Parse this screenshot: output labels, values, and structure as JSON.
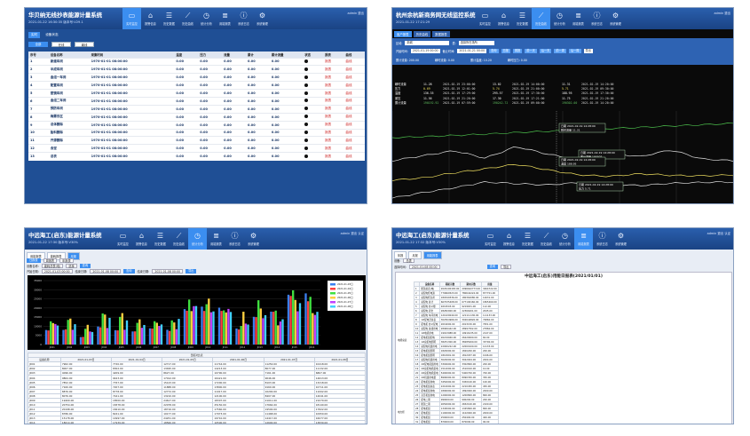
{
  "colors": {
    "header": "#1f4f95",
    "active_nav": "#3b8ef0",
    "chart_bg": "#0a0a0a"
  },
  "nav_items": [
    {
      "icon": "monitor-icon",
      "label": "实时监控"
    },
    {
      "icon": "building-icon",
      "label": "报警信息"
    },
    {
      "icon": "database-icon",
      "label": "历史数据"
    },
    {
      "icon": "line-chart-icon",
      "label": "历史曲线"
    },
    {
      "icon": "clock-icon",
      "label": "统计分析"
    },
    {
      "icon": "stack-icon",
      "label": "用能报表"
    },
    {
      "icon": "info-icon",
      "label": "系统日志"
    },
    {
      "icon": "gear-icon",
      "label": "系统管理"
    }
  ],
  "panel1": {
    "title": "华贝纳无线抄表能源计量系统",
    "subtitle": "2021-01-22 16:30:35    版本号:V29.1",
    "user": "admin 退出",
    "tabs": [
      "实时",
      "设备状态"
    ],
    "buttons": [
      "全部",
      "在线",
      "离线"
    ],
    "columns": [
      "序号",
      "设备名称",
      "采集时间",
      "温度",
      "压力",
      "流量",
      "累计",
      "累计流量",
      "状态",
      "报表",
      "曲线"
    ],
    "status_sym": "●",
    "report_label": "报表",
    "curve_label": "曲线",
    "rows": [
      {
        "no": "1",
        "name": "新建车间",
        "time": "1970-01-01 08:00:00",
        "v1": "0.00",
        "v2": "0.00",
        "v3": "0.00",
        "v4": "0.00",
        "v5": "0.00"
      },
      {
        "no": "2",
        "name": "半成车间",
        "time": "1970-01-01 08:00:00",
        "v1": "0.00",
        "v2": "0.00",
        "v3": "0.00",
        "v4": "0.00",
        "v5": "0.00"
      },
      {
        "no": "3",
        "name": "金组一车间",
        "time": "1970-01-01 08:00:00",
        "v1": "0.00",
        "v2": "0.00",
        "v3": "0.00",
        "v4": "0.00",
        "v5": "0.00"
      },
      {
        "no": "4",
        "name": "配置车间",
        "time": "1970-01-01 08:00:00",
        "v1": "0.00",
        "v2": "0.00",
        "v3": "0.00",
        "v4": "0.00",
        "v5": "0.00"
      },
      {
        "no": "5",
        "name": "壁镜车间",
        "time": "1970-01-01 08:00:00",
        "v1": "0.00",
        "v2": "0.00",
        "v3": "0.00",
        "v4": "0.00",
        "v5": "0.00"
      },
      {
        "no": "6",
        "name": "金组二车间",
        "time": "1970-01-01 08:00:00",
        "v1": "0.00",
        "v2": "0.00",
        "v3": "0.00",
        "v4": "0.00",
        "v5": "0.00"
      },
      {
        "no": "7",
        "name": "预防车间",
        "time": "1970-01-01 08:00:00",
        "v1": "0.00",
        "v2": "0.00",
        "v3": "0.00",
        "v4": "0.00",
        "v5": "0.00"
      },
      {
        "no": "8",
        "name": "梅霖东区",
        "time": "1970-01-01 08:00:00",
        "v1": "0.00",
        "v2": "0.00",
        "v3": "0.00",
        "v4": "0.00",
        "v5": "0.00"
      },
      {
        "no": "9",
        "name": "总体删除",
        "time": "1970-01-01 08:00:00",
        "v1": "0.00",
        "v2": "0.00",
        "v3": "0.00",
        "v4": "0.00",
        "v5": "0.00"
      },
      {
        "no": "10",
        "name": "胎料删除",
        "time": "1970-01-01 08:00:00",
        "v1": "0.00",
        "v2": "0.00",
        "v3": "0.00",
        "v4": "0.00",
        "v5": "0.00"
      },
      {
        "no": "11",
        "name": "开源删除",
        "time": "1970-01-01 08:00:00",
        "v1": "0.00",
        "v2": "0.00",
        "v3": "0.00",
        "v4": "0.00",
        "v5": "0.00"
      },
      {
        "no": "12",
        "name": "食堂",
        "time": "1970-01-01 08:00:00",
        "v1": "0.00",
        "v2": "0.00",
        "v3": "0.00",
        "v4": "0.00",
        "v5": "0.00"
      },
      {
        "no": "13",
        "name": "总表",
        "time": "1970-01-01 08:00:00",
        "v1": "0.00",
        "v2": "0.00",
        "v3": "0.00",
        "v4": "0.00",
        "v5": "0.00"
      }
    ]
  },
  "panel2": {
    "title": "杭州余杭新商务网无线监控系统",
    "subtitle": "2021-01-22 17:21:29",
    "user": "admin 退出",
    "tabs": [
      "客户报表",
      "历史曲线",
      "数据报表"
    ],
    "filter_row1": {
      "l1": "区域:",
      "v1": "新城",
      "l2": "表:",
      "v2": "选择所在场所"
    },
    "filter_row2": {
      "l1": "开始时间:",
      "v1": "2021-01-19 00:00",
      "l2": "截止时间:",
      "v2": "2021-01-21 00:00",
      "btns": [
        "查询",
        "日报",
        "周报",
        "前一天",
        "后一天",
        "前一周",
        "后一周"
      ],
      "export": "导出"
    },
    "stats": [
      "累计流量: 200.00",
      "瞬时流量: 0.00",
      "累计温度: 10.20",
      "瞬时压力: 0.00"
    ],
    "legend": [
      {
        "name": "瞬时流量",
        "color": "#ffffff",
        "v": [
          "11.28",
          "13.02",
          "11.31"
        ],
        "t": [
          "2021-02-19 23:00:00",
          "2021-02-19 14:00:00",
          "2021-02-19 14:20:00"
        ]
      },
      {
        "name": "压力",
        "color": "#f0e060",
        "v": [
          "0.69",
          "5.74",
          "5.71"
        ],
        "t": [
          "2021-02-19 12:01:00",
          "2021-02-19 21:00:00",
          "2021-02-19 09:30:00"
        ]
      },
      {
        "name": "温度",
        "color": "#ffffff",
        "v": [
          "136.35",
          "295.57",
          "188.95"
        ],
        "t": [
          "2021-02-19 17:29:00",
          "2021-02-19 17:30:00",
          "2021-02-19 17:30:00"
        ]
      },
      {
        "name": "差压",
        "color": "#ffffff",
        "v": [
          "11.56",
          "17.30",
          "11.75"
        ],
        "t": [
          "2021-02-19 21:20:00",
          "2021-02-19 17:21:00",
          "2021-02-19 21:20:00"
        ]
      },
      {
        "name": "累计流量",
        "color": "#60c060",
        "v": [
          "190192.92",
          "190242.72",
          "190302.00"
        ],
        "t": [
          "2021-02-19 07:59:00",
          "2021-02-19 09:00:00",
          "2021-02-19 14:20:00"
        ]
      }
    ],
    "tooltips": [
      {
        "l1": "日期 2021-02-19 14:28:00",
        "l2": "瞬时流量 11.31"
      },
      {
        "l1": "日期 2021-02-19 14:28:00",
        "l2": "累计流量 190302"
      },
      {
        "l1": "日期 2021-02-19 14:28:00",
        "l2": "温度 188.95"
      },
      {
        "l1": "日期 2021-02-19 14:28:00",
        "l2": "压力 5.71"
      }
    ]
  },
  "panel3": {
    "title": "中远海工(启东)能源计量系统",
    "subtitle": "2021-01-22 17:30    版本号:V30%",
    "user": "admin 退出 认证",
    "tabs": [
      "用能报表",
      "能耗报表",
      "月报"
    ],
    "subtabs": [
      "日报表",
      "周报表",
      "年报表"
    ],
    "filter1": {
      "l1": "设备名称:",
      "v1": "能耗总表(电)",
      "b1": "选择",
      "b2": "查询"
    },
    "filter2": {
      "l1": "开始日期:",
      "v1": "2021-01-03 00:00",
      "l2": "结束日期:",
      "v2": "2021-01-08 00:00",
      "btn": "查询",
      "l3": "结束日期:",
      "v3": "2021-01-08 00:00",
      "exp": "导出"
    },
    "table_title": "日报对比表",
    "table_head": [
      "设备名称",
      "2021-01-03日",
      "2021-01-04日",
      "2021-01-05日",
      "2021-01-06日",
      "2021-01-07日",
      "2021-01-08日"
    ],
    "table_rows": [
      [
        "JD01",
        "7962.00",
        "7720.00",
        "12717.00",
        "11744.00",
        "11250.00",
        "10418.00"
      ],
      [
        "JD02",
        "8007.00",
        "8302.00",
        "13495.00",
        "14213.00",
        "8077.00",
        "11132.00"
      ],
      [
        "JD03",
        "4096.00",
        "4209.00",
        "8627.00",
        "10790.00",
        "7161.00",
        "6867.00"
      ],
      [
        "JD04",
        "9864.00",
        "9423.00",
        "17012.00",
        "16421.00",
        "9046.00",
        "14613.00"
      ],
      [
        "JD05",
        "7852.00",
        "7767.00",
        "15143.00",
        "17200.00",
        "8103.00",
        "13218.00"
      ],
      [
        "JD06",
        "7160.00",
        "7207.00",
        "11888.00",
        "13800.00",
        "9160.00",
        "10711.00"
      ],
      [
        "JD07",
        "8876.00",
        "8778.00",
        "12772.00",
        "11917.00",
        "10200.00",
        "11002.00"
      ],
      [
        "JD08",
        "8076.00",
        "7441.00",
        "13210.00",
        "12100.00",
        "8407.00",
        "14041.00"
      ],
      [
        "JD09",
        "19400.00",
        "18500.00",
        "24617.00",
        "18307.00",
        "21011.00",
        "21070.00"
      ],
      [
        "JD10",
        "20754.00",
        "18378.00",
        "22078.00",
        "25150.00",
        "17664.00",
        "18140.00"
      ],
      [
        "JD11",
        "20198.00",
        "18410.00",
        "18716.00",
        "17560.00",
        "19500.00",
        "17822.00"
      ],
      [
        "JD12",
        "8786.00",
        "8241.00",
        "10177.00",
        "17973.00",
        "11468.00",
        "10950.00"
      ],
      [
        "JD13",
        "15178.00",
        "14997.00",
        "24251.00",
        "19710.00",
        "14417.00",
        "16077.00"
      ],
      [
        "JD14",
        "18014.00",
        "17939.00",
        "18560.00",
        "10500.00",
        "12600.00",
        "13830.00"
      ],
      [
        "JD15",
        "27278.00",
        "26607.00",
        "29692.00",
        "24402.00",
        "18211.00",
        "22670.00"
      ],
      [
        "JD16",
        "28007.00",
        "23707.00",
        "26125.00",
        "17221.00",
        "16212.00",
        "17916.00"
      ]
    ]
  },
  "panel4": {
    "title": "中远海工(启东)能源计量系统",
    "subtitle": "2021-01-22 17:32    版本号:V30%",
    "user": "admin 退出 认证",
    "tabs": [
      "年报",
      "月报",
      "用能报表"
    ],
    "row1": {
      "l": "设备: ",
      "v": "总表"
    },
    "row2": {
      "l": "选择时间:",
      "v": "2021-01-08 00:00",
      "b1": "查询",
      "b2": "导出"
    },
    "report_title": "中远海工(启东)用能日报表(2021/01/01)",
    "head": [
      "设备名称",
      "期初示数",
      "期末示数",
      "用量"
    ],
    "group1": "电能总表",
    "group2": "电力柜",
    "rows": [
      [
        "能源总表(电)",
        "2029100183.00",
        "2096642773.00",
        "3464722.00"
      ],
      [
        "总配电柜电源",
        "770660523.00",
        "780642224.00",
        "877701.00"
      ],
      [
        "总配电柜负荷",
        "180349336.00",
        "180362080.00",
        "12631.00"
      ],
      [
        "总配电 总计",
        "667035408.00",
        "677190160.00",
        "1865460.00"
      ],
      [
        "总配电 办公楼",
        "9219503.00",
        "9219631.00",
        "112.00"
      ],
      [
        "总配电 宿舍",
        "28282000.00",
        "22366201.00",
        "2045.00"
      ],
      [
        "总配电 车间用电",
        "121020040.00",
        "121111130.00",
        "111133.00"
      ],
      [
        "1#配电室总表",
        "302564966.00",
        "302644826.00",
        "79860.00"
      ],
      [
        "配电机 办公配电",
        "2019000.00",
        "2013150.00",
        "7951.00"
      ],
      [
        "总配电 总线用电",
        "28969442.00",
        "28997302.00",
        "27860.00"
      ],
      [
        "1#电机用电",
        "19913988.00",
        "19916135.00",
        "2147.00"
      ],
      [
        "配电机组配电",
        "26219940.00",
        "26220000.00",
        "60.00"
      ],
      [
        "1#总配电照明",
        "38251300.00",
        "38285000.00",
        "33700.00"
      ],
      [
        "总配电机组用电",
        "22000222.00",
        "22000100.00",
        "12133.00"
      ],
      [
        "配电机组照明",
        "1820000.00",
        "1820200.00",
        "200.00"
      ],
      [
        "配电机组照明",
        "1810991.00",
        "1812037.00",
        "1046.00"
      ],
      [
        "总配电机组用电",
        "3020000.00",
        "3022004.00",
        "2004.00"
      ],
      [
        "2#配电机组用电",
        "3302600.00",
        "3302800.00",
        "200.00"
      ],
      [
        "2#总配电机组电",
        "1512000.00",
        "1510010.00",
        "10.00"
      ],
      [
        "2#总配电机组电",
        "5400000.00",
        "5400700.00",
        "700.00"
      ],
      [
        "2#机组用电量",
        "8990000.00",
        "8990350.00",
        "350.00"
      ],
      [
        "配电机组用电",
        "3450000.00",
        "3450100.00",
        "100.00"
      ],
      [
        "配电机组总表",
        "2210000.00",
        "2210450.00",
        "450.00"
      ],
      [
        "配电机组用电",
        "1890000.00",
        "1892000.00",
        "2000.00"
      ],
      [
        "高压机组用电",
        "1200000.00",
        "1200800.00",
        "800.00"
      ],
      [
        "配电二期",
        "990000.00",
        "990200.00",
        "200.00"
      ],
      [
        "能源二期",
        "2650000.00",
        "2652100.00",
        "2100.00"
      ],
      [
        "配电机组",
        "1345000.00",
        "1345800.00",
        "800.00"
      ],
      [
        "配电机组",
        "1100000.00",
        "1102000.00",
        "2000.00"
      ],
      [
        "配电机组",
        "250000.00",
        "250400.00",
        "400.00"
      ],
      [
        "配电机组",
        "870000.00",
        "870090.00",
        "90.00"
      ],
      [
        "电力柜",
        "1401000.00",
        "1401200.00",
        "200.00"
      ],
      [
        "电力柜",
        "612000.00",
        "612500.00",
        "500.00"
      ]
    ]
  },
  "chart_data": [
    {
      "type": "line",
      "title": "",
      "series": [
        {
          "name": "累计流量",
          "values": [
            190193,
            190200,
            190210,
            190220,
            190232,
            190242,
            190250,
            190262,
            190272,
            190282,
            190292,
            190302
          ]
        },
        {
          "name": "瞬时流量",
          "values": [
            11.3,
            11.9,
            12.5,
            11.6,
            13.0,
            12.1,
            11.4,
            12.2,
            11.8,
            12.6,
            11.5,
            11.3
          ]
        },
        {
          "name": "温度",
          "values": [
            136,
            160,
            210,
            250,
            295,
            240,
            190,
            175,
            200,
            185,
            180,
            189
          ]
        },
        {
          "name": "压力",
          "values": [
            0.7,
            2.4,
            3.9,
            5.7,
            5.2,
            4.8,
            5.5,
            5.0,
            4.6,
            5.3,
            5.6,
            5.7
          ]
        }
      ]
    },
    {
      "type": "bar",
      "categories": [
        "JD01",
        "JD02",
        "JD03",
        "JD04",
        "JD05",
        "JD06",
        "JD07",
        "JD08",
        "JD09",
        "JD10",
        "JD11",
        "JD12",
        "JD13",
        "JD14",
        "JD15",
        "JD16"
      ],
      "series": [
        {
          "name": "2021-01-03日",
          "values": [
            7962,
            8007,
            4096,
            9864,
            7852,
            7160,
            8876,
            8076,
            19400,
            20754,
            20198,
            8786,
            15178,
            18014,
            27278,
            28007
          ]
        },
        {
          "name": "2021-01-04日",
          "values": [
            7720,
            8302,
            4209,
            9423,
            7767,
            7207,
            8778,
            7441,
            18500,
            18378,
            18410,
            8241,
            14997,
            17939,
            26607,
            23707
          ]
        },
        {
          "name": "2021-01-05日",
          "values": [
            12717,
            13495,
            8627,
            17012,
            15143,
            11888,
            12772,
            13210,
            24617,
            22078,
            18716,
            10177,
            24251,
            18560,
            29692,
            26125
          ]
        },
        {
          "name": "2021-01-06日",
          "values": [
            11744,
            14213,
            10790,
            16421,
            17200,
            13800,
            11917,
            12100,
            18307,
            25150,
            17560,
            17973,
            19710,
            10500,
            24402,
            17221
          ]
        },
        {
          "name": "2021-01-07日",
          "values": [
            11250,
            8077,
            7161,
            9046,
            8103,
            9160,
            10200,
            8407,
            21011,
            17664,
            19500,
            11468,
            14417,
            12600,
            18211,
            16212
          ]
        },
        {
          "name": "2021-01-08日",
          "values": [
            10418,
            11132,
            6867,
            14613,
            13218,
            10711,
            11002,
            14041,
            21070,
            18140,
            17822,
            10950,
            16077,
            13830,
            22670,
            17916
          ]
        }
      ],
      "colors": [
        "#3a7ff0",
        "#ff4040",
        "#40e040",
        "#ffd040",
        "#c040ff",
        "#40d0ff"
      ],
      "ylim": [
        0,
        35000
      ]
    }
  ]
}
